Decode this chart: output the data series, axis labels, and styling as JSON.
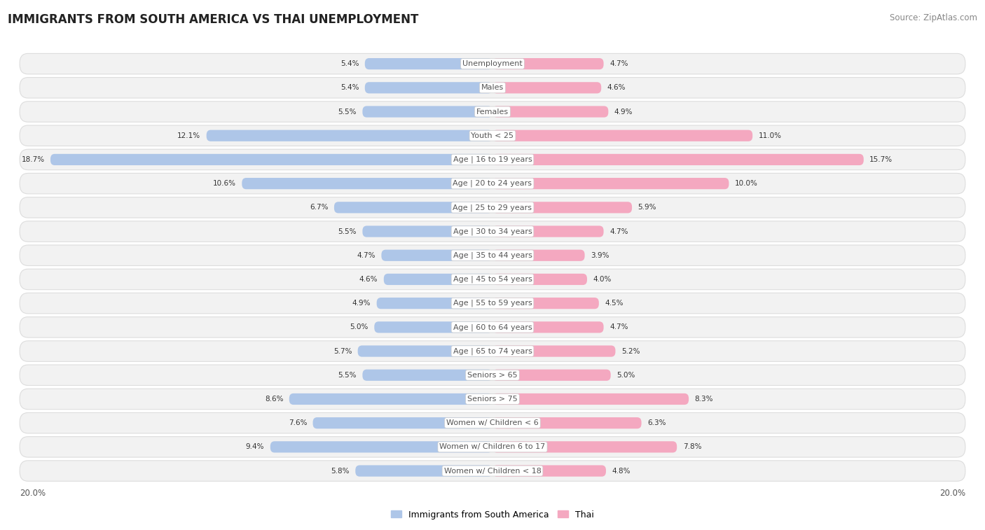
{
  "title": "IMMIGRANTS FROM SOUTH AMERICA VS THAI UNEMPLOYMENT",
  "source": "Source: ZipAtlas.com",
  "categories": [
    "Unemployment",
    "Males",
    "Females",
    "Youth < 25",
    "Age | 16 to 19 years",
    "Age | 20 to 24 years",
    "Age | 25 to 29 years",
    "Age | 30 to 34 years",
    "Age | 35 to 44 years",
    "Age | 45 to 54 years",
    "Age | 55 to 59 years",
    "Age | 60 to 64 years",
    "Age | 65 to 74 years",
    "Seniors > 65",
    "Seniors > 75",
    "Women w/ Children < 6",
    "Women w/ Children 6 to 17",
    "Women w/ Children < 18"
  ],
  "left_values": [
    5.4,
    5.4,
    5.5,
    12.1,
    18.7,
    10.6,
    6.7,
    5.5,
    4.7,
    4.6,
    4.9,
    5.0,
    5.7,
    5.5,
    8.6,
    7.6,
    9.4,
    5.8
  ],
  "right_values": [
    4.7,
    4.6,
    4.9,
    11.0,
    15.7,
    10.0,
    5.9,
    4.7,
    3.9,
    4.0,
    4.5,
    4.7,
    5.2,
    5.0,
    8.3,
    6.3,
    7.8,
    4.8
  ],
  "left_color": "#aec6e8",
  "right_color": "#f4a8c0",
  "axis_max": 20.0,
  "background_color": "#ffffff",
  "row_bg_even": "#f7f7f7",
  "row_bg_odd": "#ffffff",
  "legend_left": "Immigrants from South America",
  "legend_right": "Thai",
  "title_fontsize": 12,
  "source_fontsize": 8.5,
  "label_fontsize": 8,
  "value_fontsize": 7.5,
  "axis_label_fontsize": 8.5
}
